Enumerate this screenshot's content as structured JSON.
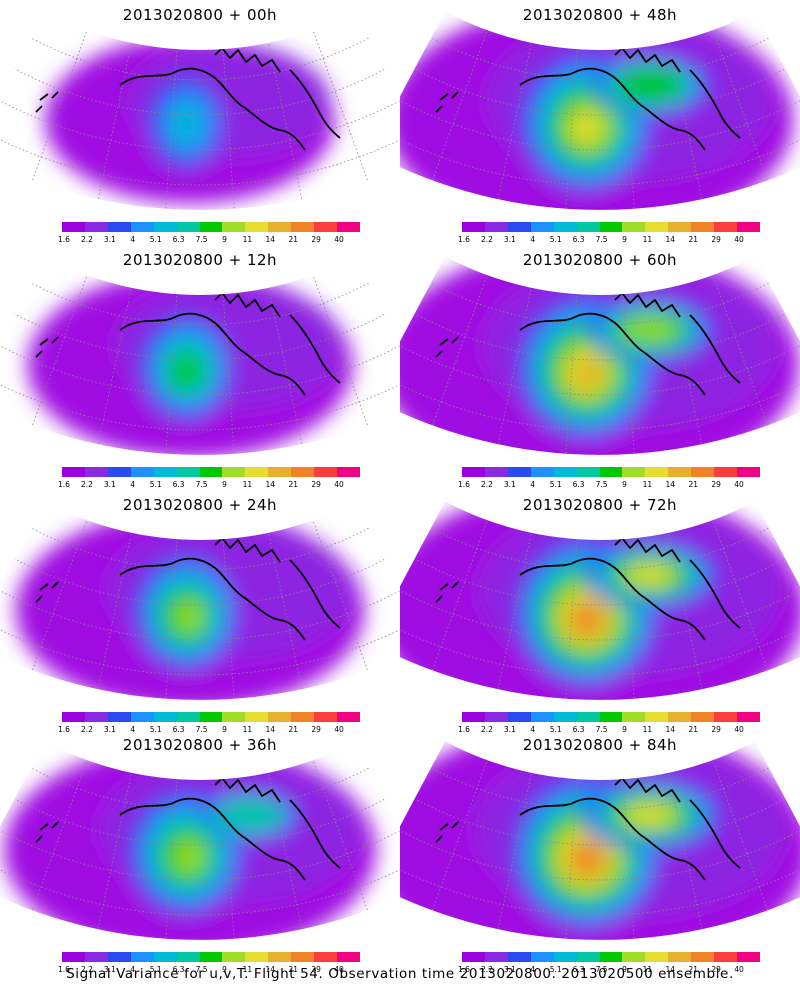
{
  "panels": [
    {
      "title": "2013020800 + 00h",
      "intensity": 0.35,
      "spread": 0.35
    },
    {
      "title": "2013020800 + 48h",
      "intensity": 0.75,
      "spread": 0.85
    },
    {
      "title": "2013020800 + 12h",
      "intensity": 0.5,
      "spread": 0.5
    },
    {
      "title": "2013020800 + 60h",
      "intensity": 0.85,
      "spread": 0.9
    },
    {
      "title": "2013020800 + 24h",
      "intensity": 0.6,
      "spread": 0.6
    },
    {
      "title": "2013020800 + 72h",
      "intensity": 0.95,
      "spread": 0.95
    },
    {
      "title": "2013020800 + 36h",
      "intensity": 0.65,
      "spread": 0.7
    },
    {
      "title": "2013020800 + 84h",
      "intensity": 0.95,
      "spread": 1.0
    }
  ],
  "colorbar": {
    "labels": [
      "1.6",
      "2.2",
      "3.1",
      "4",
      "5.1",
      "6.3",
      "7.5",
      "9",
      "11",
      "14",
      "21",
      "29",
      "40"
    ],
    "colors": [
      "#9a00e0",
      "#8a2be2",
      "#2a4bf0",
      "#1e90ff",
      "#00b8d8",
      "#00c8a0",
      "#00c800",
      "#a0dc28",
      "#e6dc32",
      "#e6af2d",
      "#f08228",
      "#fa3c3c",
      "#f00082"
    ]
  },
  "footer": "Signal Variance for u,v,T. Flight 54. Observation time 2013020800. 2013020500 ensemble."
}
